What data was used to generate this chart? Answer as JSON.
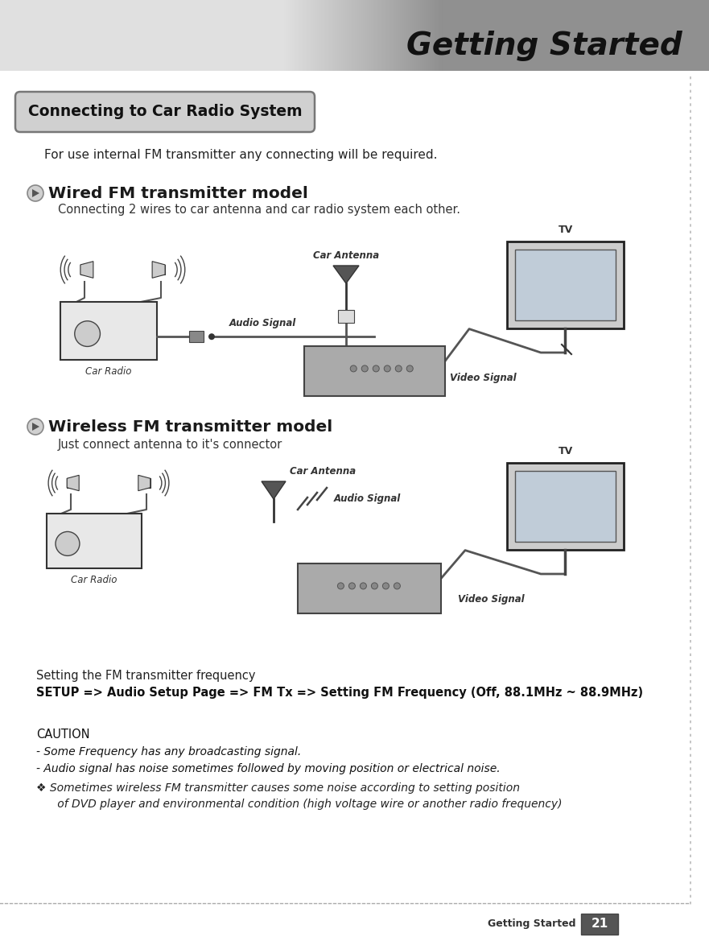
{
  "title": "Getting Started",
  "section_title": "Connecting to Car Radio System",
  "intro_text": "For use internal FM transmitter any connecting will be required.",
  "wired_title": "Wired FM transmitter model",
  "wired_desc": "Connecting 2 wires to car antenna and car radio system each other.",
  "wireless_title": "Wireless FM transmitter model",
  "wireless_desc": "Just connect antenna to it's connector",
  "setting_text1": "Setting the FM transmitter frequency",
  "setting_text2": "SETUP => Audio Setup Page => FM Tx => Setting FM Frequency (Off, 88.1MHz ~ 88.9MHz)",
  "caution_title": "CAUTION",
  "caution_line1": "- Some Frequency has any broadcasting signal.",
  "caution_line2": "- Audio signal has noise sometimes followed by moving position or electrical noise.",
  "caution_note1": "❖ Sometimes wireless FM transmitter causes some noise according to setting position",
  "caution_note2": "      of DVD player and environmental condition (high voltage wire or another radio frequency)",
  "footer_text": "Getting Started",
  "page_number": "21",
  "content_bg": "#ffffff",
  "header_left_color": "#e8e8e8",
  "header_right_color": "#999999",
  "section_box_color": "#d0d0d0",
  "dotted_line_color": "#aaaaaa"
}
